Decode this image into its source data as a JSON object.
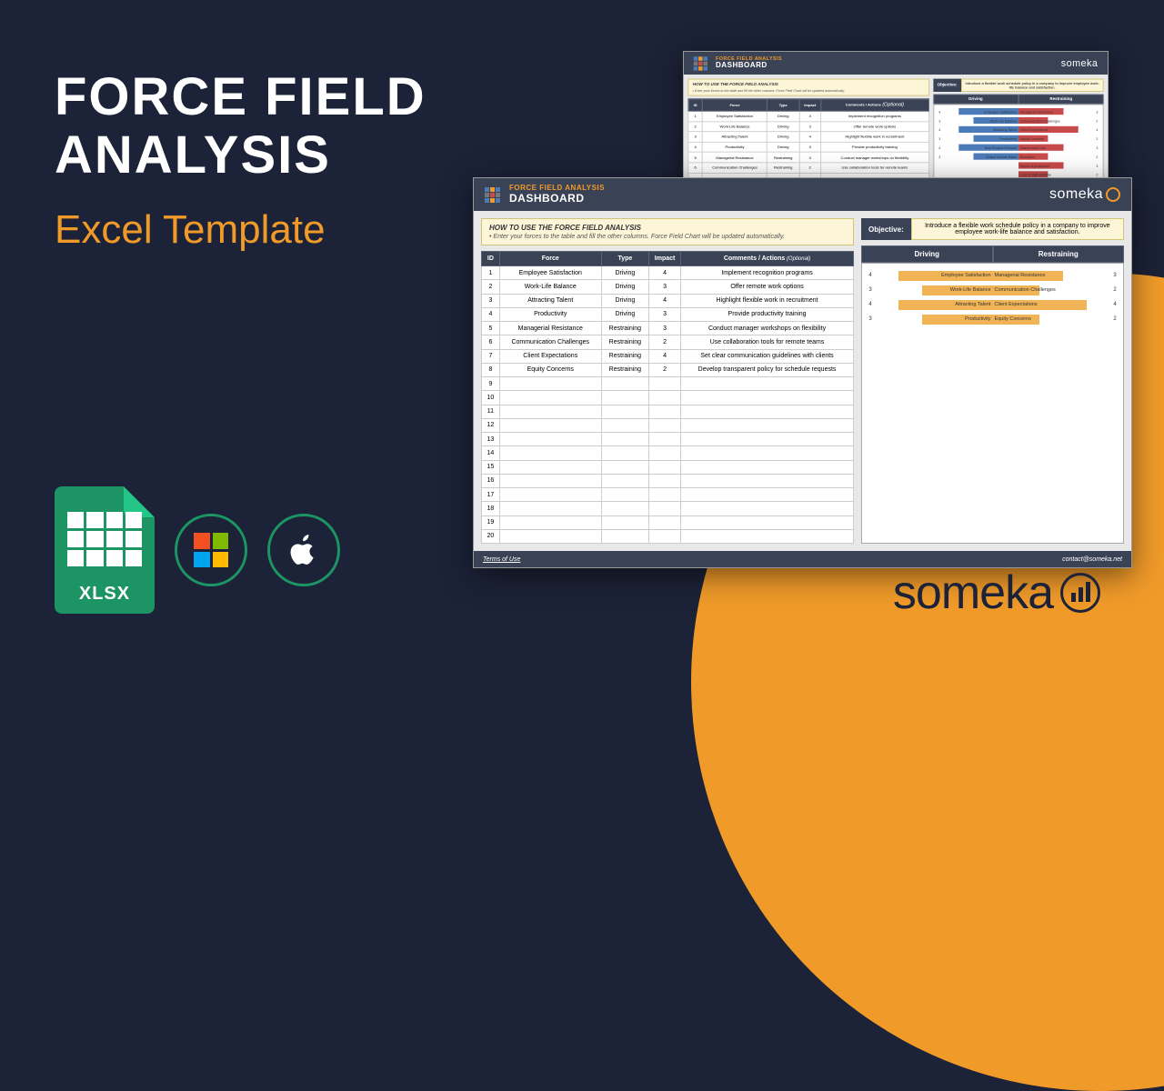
{
  "title": {
    "line1": "FORCE FIELD",
    "line2": "ANALYSIS",
    "subtitle": "Excel Template"
  },
  "xlsx_label": "XLSX",
  "brand": "someka",
  "win_colors": [
    "#f25022",
    "#7fba00",
    "#00a4ef",
    "#ffb900"
  ],
  "screenshot": {
    "header_small": "FORCE FIELD ANALYSIS",
    "header_big": "DASHBOARD",
    "brand": "someka",
    "howto_title": "HOW TO USE THE FORCE FIELD ANALYSIS",
    "howto_text": "• Enter your forces to the table and fill the other columns. Force Field Chart will be updated automatically.",
    "table": {
      "headers": [
        "ID",
        "Force",
        "Type",
        "Impact",
        "Comments / Actions"
      ],
      "header_opt": "(Optional)",
      "rows": [
        [
          "1",
          "Employee Satisfaction",
          "Driving",
          "4",
          "Implement recognition programs"
        ],
        [
          "2",
          "Work-Life Balance",
          "Driving",
          "3",
          "Offer remote work options"
        ],
        [
          "3",
          "Attracting Talent",
          "Driving",
          "4",
          "Highlight flexible work in recruitment"
        ],
        [
          "4",
          "Productivity",
          "Driving",
          "3",
          "Provide productivity training"
        ],
        [
          "5",
          "Managerial Resistance",
          "Restraining",
          "3",
          "Conduct manager workshops on flexibility"
        ],
        [
          "6",
          "Communication Challenges",
          "Restraining",
          "2",
          "Use collaboration tools for remote teams"
        ],
        [
          "7",
          "Client Expectations",
          "Restraining",
          "4",
          "Set clear communication guidelines with clients"
        ],
        [
          "8",
          "Equity Concerns",
          "Restraining",
          "2",
          "Develop transparent policy for schedule requests"
        ]
      ],
      "empty_rows": [
        "9",
        "10",
        "11",
        "12",
        "13",
        "14",
        "15",
        "16",
        "17",
        "18",
        "19",
        "20"
      ]
    },
    "objective_label": "Objective:",
    "objective_text": "Introduce a flexible work schedule policy in a company to improve employee work-life balance and satisfaction.",
    "chart_headers": [
      "Driving",
      "Restraining"
    ],
    "chart_rows": [
      {
        "lval": 4,
        "llabel": "Employee Satisfaction",
        "rlabel": "Managerial Resistance",
        "rval": 3
      },
      {
        "lval": 3,
        "llabel": "Work-Life Balance",
        "rlabel": "Communication Challenges",
        "rval": 2
      },
      {
        "lval": 4,
        "llabel": "Attracting Talent",
        "rlabel": "Client Expectations",
        "rval": 4
      },
      {
        "lval": 3,
        "llabel": "Productivity",
        "rlabel": "Equity Concerns",
        "rval": 2
      }
    ],
    "footer_link": "Terms of Use",
    "footer_contact": "contact@someka.net"
  },
  "back_shot": {
    "chart_rows": [
      {
        "lval": 4,
        "llabel": "Employee Satisfaction",
        "rlabel": "Managerial Resistance",
        "rval": 3
      },
      {
        "lval": 3,
        "llabel": "Work-Life Balance",
        "rlabel": "Communication Challenges",
        "rval": 2
      },
      {
        "lval": 4,
        "llabel": "Attracting Talent",
        "rlabel": "Client Expectations",
        "rval": 4
      },
      {
        "lval": 3,
        "llabel": "Productivity",
        "rlabel": "Equity Concerns",
        "rval": 2
      },
      {
        "lval": 4,
        "llabel": "New Product Demand",
        "rlabel": "Maintenance cost",
        "rval": 3
      },
      {
        "lval": 3,
        "llabel": "Output Volume Raise",
        "rlabel": "Disruption",
        "rval": 2
      },
      {
        "lval": 0,
        "llabel": "",
        "rlabel": "Speed of production",
        "rval": 3
      },
      {
        "lval": 0,
        "llabel": "",
        "rlabel": "Loss of staff overtime",
        "rval": 2
      }
    ]
  },
  "colors": {
    "bg": "#1c2237",
    "orange": "#f09a29",
    "driving_bar": "#f0b456",
    "restraining_bar": "#f0b456",
    "driving_bar_blue": "#4b7bb8",
    "restraining_bar_red": "#c94a4a"
  }
}
